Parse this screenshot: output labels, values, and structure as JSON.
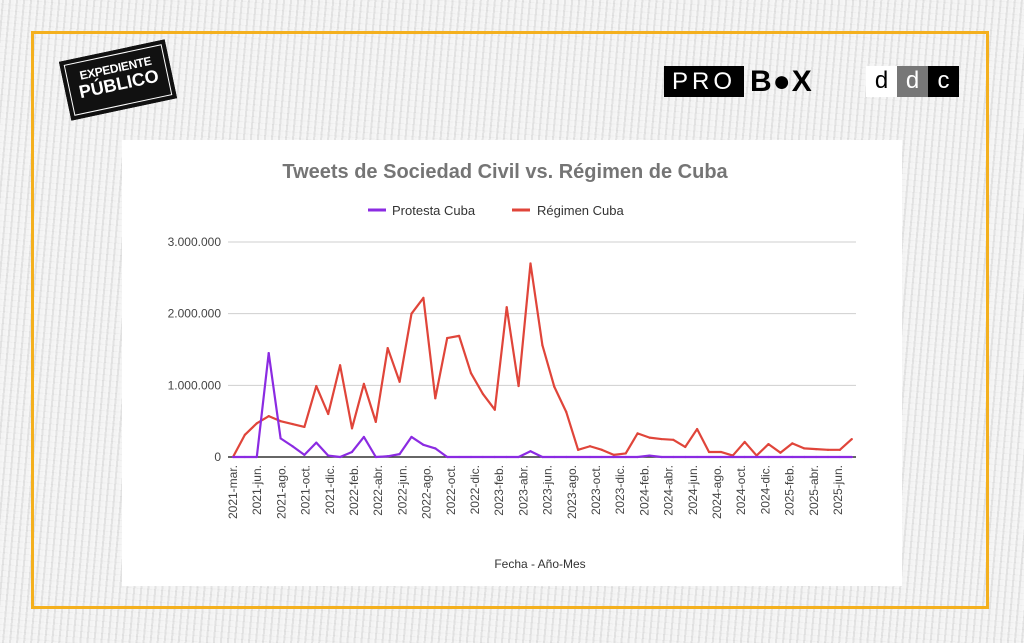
{
  "logos": {
    "expediente_publico": [
      "EXPEDIENTE",
      "PÚBLICO"
    ],
    "probox": {
      "left": "PRO",
      "right": "B●X"
    },
    "ddc": [
      "d",
      "d",
      "c"
    ]
  },
  "colors": {
    "frame": "#f4b01e",
    "protesta": "#8b2be2",
    "regimen": "#e0453a"
  },
  "chart_data": {
    "type": "line",
    "title": "Tweets de Sociedad Civil vs. Régimen de Cuba",
    "xlabel": "Fecha - Año-Mes",
    "ylabel": "",
    "ylim": [
      0,
      3000000
    ],
    "yticks": [
      0,
      1000000,
      2000000,
      3000000
    ],
    "ytick_labels": [
      "0",
      "1.000.000",
      "2.000.000",
      "3.000.000"
    ],
    "grid": true,
    "legend_position": "top-center",
    "xtick_labels": [
      "2021-mar.",
      "2021-jun.",
      "2021-ago.",
      "2021-oct.",
      "2021-dic.",
      "2022-feb.",
      "2022-abr.",
      "2022-jun.",
      "2022-ago.",
      "2022-oct.",
      "2022-dic.",
      "2023-feb.",
      "2023-abr.",
      "2023-jun.",
      "2023-ago.",
      "2023-oct.",
      "2023-dic.",
      "2024-feb.",
      "2024-abr.",
      "2024-jun.",
      "2024-ago.",
      "2024-oct.",
      "2024-dic.",
      "2025-feb.",
      "2025-abr.",
      "2025-jun."
    ],
    "series": [
      {
        "name": "Protesta Cuba",
        "color": "#8b2be2",
        "values": [
          0,
          0,
          0,
          1450000,
          260000,
          150000,
          30000,
          200000,
          20000,
          0,
          70000,
          280000,
          0,
          10000,
          40000,
          280000,
          170000,
          120000,
          0,
          0,
          0,
          0,
          0,
          0,
          0,
          80000,
          0,
          0,
          0,
          0,
          0,
          0,
          0,
          0,
          0,
          20000,
          0,
          0,
          0,
          0,
          0,
          0,
          0,
          0,
          0,
          0,
          0,
          0,
          0,
          0,
          0,
          0,
          0
        ]
      },
      {
        "name": "Régimen Cuba",
        "color": "#e0453a",
        "values": [
          0,
          310000,
          470000,
          570000,
          500000,
          460000,
          420000,
          990000,
          600000,
          1280000,
          400000,
          1020000,
          490000,
          1520000,
          1050000,
          2000000,
          2220000,
          820000,
          1660000,
          1690000,
          1170000,
          880000,
          660000,
          2090000,
          990000,
          2700000,
          1560000,
          980000,
          630000,
          100000,
          150000,
          100000,
          30000,
          50000,
          330000,
          270000,
          250000,
          240000,
          140000,
          390000,
          70000,
          70000,
          20000,
          210000,
          20000,
          180000,
          60000,
          190000,
          120000,
          110000,
          100000,
          100000,
          250000
        ]
      }
    ]
  }
}
